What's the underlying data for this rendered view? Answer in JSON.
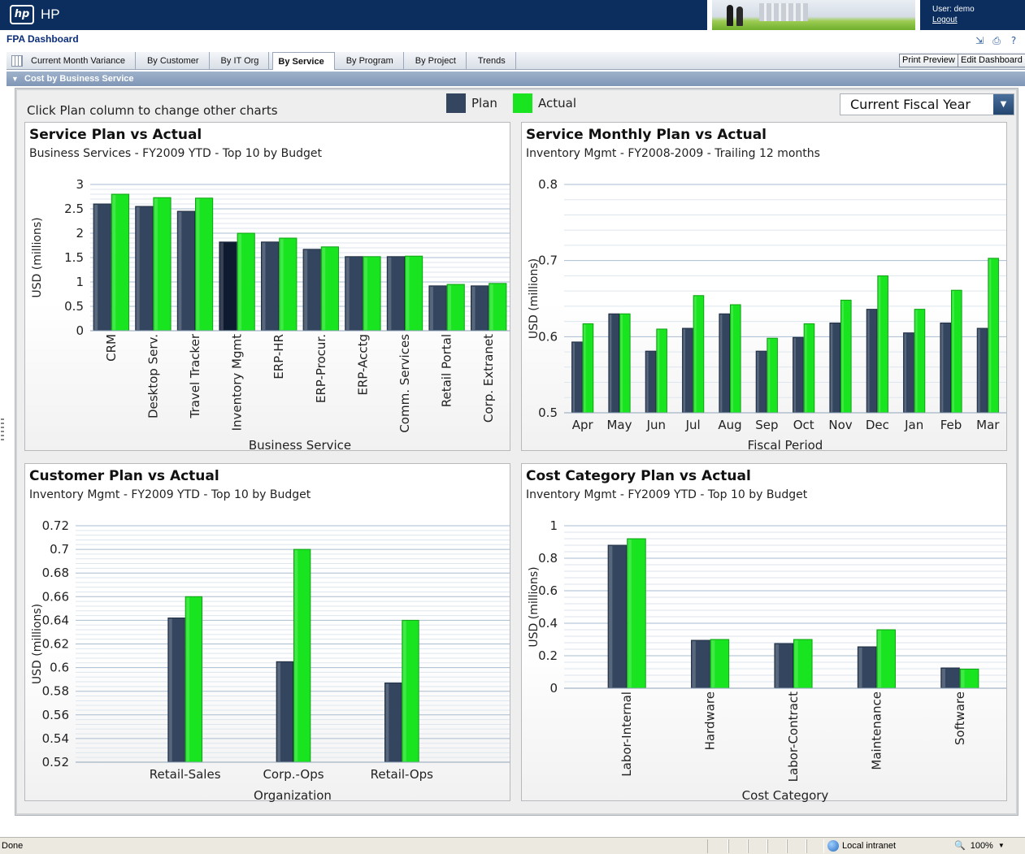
{
  "header": {
    "logo_text": "hp",
    "brand": "HP",
    "user_label": "User: demo",
    "logout_label": "Logout",
    "page_title": "FPA Dashboard",
    "icons": [
      "export-icon",
      "print-icon",
      "help-icon"
    ]
  },
  "tabs": [
    {
      "label": "Current Month Variance",
      "active": false
    },
    {
      "label": "By Customer",
      "active": false
    },
    {
      "label": "By IT Org",
      "active": false
    },
    {
      "label": "By Service",
      "active": true
    },
    {
      "label": "By Program",
      "active": false
    },
    {
      "label": "By Project",
      "active": false
    },
    {
      "label": "Trends",
      "active": false
    }
  ],
  "toolbar": {
    "print_preview": "Print Preview",
    "edit_dashboard": "Edit Dashboard"
  },
  "section": {
    "title": "Cost by Business Service"
  },
  "controls": {
    "hint": "Click Plan column to change other charts",
    "legend_plan": "Plan",
    "legend_actual": "Actual",
    "period_select": "Current Fiscal Year"
  },
  "colors": {
    "plan": "#34465f",
    "plan_selected": "#0e1a30",
    "actual": "#18e41f",
    "brand": "#0b2e5e"
  },
  "charts": {
    "c1": {
      "title": "Service Plan vs Actual",
      "subtitle": "Business Services - FY2009 YTD - Top 10 by Budget"
    },
    "c2": {
      "title": "Service Monthly Plan vs Actual",
      "subtitle": "Inventory Mgmt - FY2008-2009 - Trailing 12 months"
    },
    "c3": {
      "title": "Customer Plan vs Actual",
      "subtitle": "Inventory Mgmt - FY2009 YTD - Top 10 by Budget"
    },
    "c4": {
      "title": "Cost Category Plan vs Actual",
      "subtitle": "Inventory Mgmt - FY2009 YTD - Top 10 by Budget"
    }
  },
  "chart_data": [
    {
      "type": "bar",
      "title": "Service Plan vs Actual",
      "subtitle": "Business Services - FY2009 YTD - Top 10 by Budget",
      "categories": [
        "CRM",
        "Desktop Serv.",
        "Travel Tracker",
        "Inventory Mgmt",
        "ERP-HR",
        "ERP-Procur.",
        "ERP-Acctg",
        "Comm. Services",
        "Retail Portal",
        "Corp. Extranet"
      ],
      "series": [
        {
          "name": "Plan",
          "values": [
            2.6,
            2.55,
            2.45,
            1.82,
            1.82,
            1.67,
            1.52,
            1.52,
            0.92,
            0.92
          ]
        },
        {
          "name": "Actual",
          "values": [
            2.8,
            2.73,
            2.72,
            2.0,
            1.9,
            1.72,
            1.52,
            1.53,
            0.95,
            0.97
          ]
        }
      ],
      "selected_category": "Inventory Mgmt",
      "xlabel": "Business Service",
      "ylabel": "USD (millions)",
      "ylim": [
        0,
        3
      ],
      "yticks": [
        0,
        0.5,
        1,
        1.5,
        2,
        2.5,
        3
      ],
      "grid": true
    },
    {
      "type": "bar",
      "title": "Service Monthly Plan vs Actual",
      "subtitle": "Inventory Mgmt - FY2008-2009 - Trailing 12 months",
      "categories": [
        "Apr",
        "May",
        "Jun",
        "Jul",
        "Aug",
        "Sep",
        "Oct",
        "Nov",
        "Dec",
        "Jan",
        "Feb",
        "Mar"
      ],
      "series": [
        {
          "name": "Plan",
          "values": [
            0.593,
            0.63,
            0.581,
            0.611,
            0.63,
            0.581,
            0.599,
            0.618,
            0.636,
            0.605,
            0.618,
            0.611
          ]
        },
        {
          "name": "Actual",
          "values": [
            0.617,
            0.63,
            0.61,
            0.654,
            0.642,
            0.598,
            0.617,
            0.648,
            0.68,
            0.636,
            0.661,
            0.703
          ]
        }
      ],
      "xlabel": "Fiscal Period",
      "ylabel": "USD (millions)",
      "ylim": [
        0.5,
        0.8
      ],
      "yticks": [
        0.5,
        0.6,
        0.7,
        0.8
      ],
      "grid": true
    },
    {
      "type": "bar",
      "title": "Customer Plan vs Actual",
      "subtitle": "Inventory Mgmt - FY2009 YTD - Top 10 by Budget",
      "categories": [
        "Retail-Sales",
        "Corp.-Ops",
        "Retail-Ops"
      ],
      "series": [
        {
          "name": "Plan",
          "values": [
            0.642,
            0.605,
            0.587
          ]
        },
        {
          "name": "Actual",
          "values": [
            0.66,
            0.7,
            0.64
          ]
        }
      ],
      "xlabel": "Organization",
      "ylabel": "USD (millions)",
      "ylim": [
        0.52,
        0.72
      ],
      "yticks": [
        0.52,
        0.54,
        0.56,
        0.58,
        0.6,
        0.62,
        0.64,
        0.66,
        0.68,
        0.7,
        0.72
      ],
      "grid": true
    },
    {
      "type": "bar",
      "title": "Cost Category Plan vs Actual",
      "subtitle": "Inventory Mgmt - FY2009 YTD - Top 10 by Budget",
      "categories": [
        "Labor-Internal",
        "Hardware",
        "Labor-Contract",
        "Maintenance",
        "Software"
      ],
      "series": [
        {
          "name": "Plan",
          "values": [
            0.88,
            0.295,
            0.275,
            0.255,
            0.125
          ]
        },
        {
          "name": "Actual",
          "values": [
            0.92,
            0.3,
            0.3,
            0.36,
            0.118
          ]
        }
      ],
      "xlabel": "Cost Category",
      "ylabel": "USD (millions)",
      "ylim": [
        0,
        1
      ],
      "yticks": [
        0,
        0.2,
        0.4,
        0.6,
        0.8,
        1
      ],
      "grid": true
    }
  ],
  "statusbar": {
    "status": "Done",
    "zone": "Local intranet",
    "zoom": "100%"
  }
}
